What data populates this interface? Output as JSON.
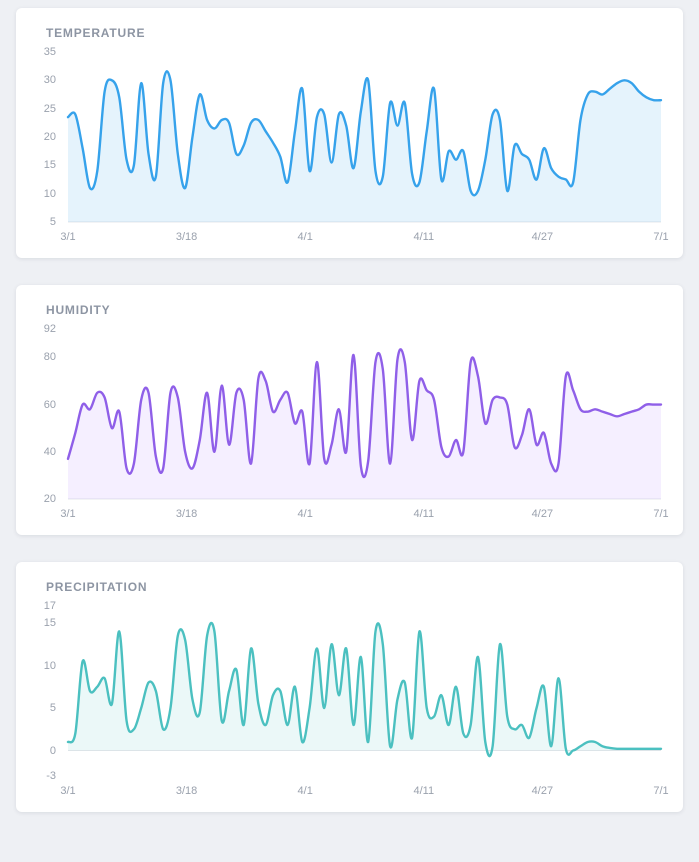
{
  "page": {
    "background": "#eef0f4"
  },
  "chart_data": [
    {
      "type": "line",
      "title": "TEMPERATURE",
      "xlabel": "",
      "ylabel": "",
      "color": "#36a2eb",
      "fill_color": "rgba(54,162,235,0.13)",
      "ylim": [
        5,
        35
      ],
      "yticks": [
        35,
        30,
        25,
        20,
        15,
        10,
        5
      ],
      "xticks": [
        "3/1",
        "3/18",
        "4/1",
        "4/11",
        "4/27",
        "7/1"
      ],
      "baseline": 5,
      "grid": "baseline-only",
      "legend": "none",
      "values": [
        23.5,
        24,
        18,
        11,
        14,
        28,
        30,
        27,
        16,
        15,
        29.5,
        17,
        13,
        29.5,
        30,
        17,
        11,
        20,
        27.5,
        23,
        21.5,
        23,
        22.5,
        17,
        18.5,
        22.5,
        23,
        21,
        19,
        16.5,
        12,
        21,
        28.5,
        14,
        23.5,
        24,
        15.5,
        24,
        22,
        14.5,
        24.5,
        30,
        14,
        13,
        26,
        22,
        26,
        13.5,
        12,
        21,
        28.5,
        12.5,
        17.5,
        16,
        17.5,
        10.5,
        10.5,
        16,
        24,
        23,
        10.5,
        18.5,
        17,
        16,
        12.5,
        18,
        14.5,
        13,
        12.5,
        12,
        23,
        27.5,
        28,
        27.5,
        28.5,
        29.5,
        30,
        29.5,
        28,
        27,
        26.5,
        26.5
      ]
    },
    {
      "type": "line",
      "title": "HUMIDITY",
      "xlabel": "",
      "ylabel": "",
      "color": "#8f5fe8",
      "fill_color": "rgba(153,102,255,0.10)",
      "ylim": [
        20,
        92
      ],
      "yticks": [
        92,
        80,
        60,
        40,
        20
      ],
      "xticks": [
        "3/1",
        "3/18",
        "4/1",
        "4/11",
        "4/27",
        "7/1"
      ],
      "baseline": 20,
      "grid": "baseline-only",
      "legend": "none",
      "values": [
        37,
        48,
        60,
        58,
        65,
        63,
        50,
        57,
        33,
        35,
        62,
        65,
        38,
        33,
        65,
        63,
        40,
        33,
        45,
        65,
        40,
        68,
        43,
        65,
        62,
        35,
        71,
        70,
        57,
        62,
        65,
        52,
        57,
        35,
        78,
        37,
        43,
        58,
        40,
        81,
        34,
        36,
        78,
        75,
        35,
        79,
        78,
        45,
        70,
        66,
        62,
        42,
        38,
        45,
        40,
        78,
        72,
        52,
        62,
        63,
        60,
        42,
        47,
        58,
        43,
        48,
        35,
        35,
        72,
        66,
        58,
        57,
        58,
        57,
        56,
        55,
        56,
        57,
        58,
        60,
        60,
        60
      ]
    },
    {
      "type": "line",
      "title": "PRECIPITATION",
      "xlabel": "",
      "ylabel": "",
      "color": "#4bc0c0",
      "fill_color": "rgba(75,192,192,0.11)",
      "ylim": [
        -3,
        17
      ],
      "yticks": [
        17,
        15,
        10,
        5,
        0,
        -3
      ],
      "xticks": [
        "3/1",
        "3/18",
        "4/1",
        "4/11",
        "4/27",
        "7/1"
      ],
      "baseline": 0,
      "grid": "baseline-only",
      "legend": "none",
      "values": [
        1,
        2,
        10.5,
        7,
        7.5,
        8.5,
        5.5,
        14,
        3.5,
        2.5,
        5,
        8,
        7,
        2.5,
        5,
        13.5,
        13,
        6,
        4.5,
        13.5,
        14,
        3.5,
        7,
        9.5,
        3,
        12,
        5.5,
        3,
        6.5,
        7,
        3,
        7.5,
        1,
        5,
        12,
        5,
        12.5,
        6.5,
        12,
        3,
        11,
        1,
        14,
        12.5,
        0.5,
        6,
        8,
        1.5,
        14,
        5,
        4,
        6.5,
        3,
        7.5,
        2,
        3,
        11,
        1,
        0.5,
        12.5,
        4,
        2.5,
        3,
        1.5,
        5,
        7.5,
        0.5,
        8.5,
        0.2,
        0,
        0.5,
        1,
        1,
        0.5,
        0.3,
        0.2,
        0.2,
        0.2,
        0.2,
        0.2,
        0.2,
        0.2
      ]
    }
  ]
}
